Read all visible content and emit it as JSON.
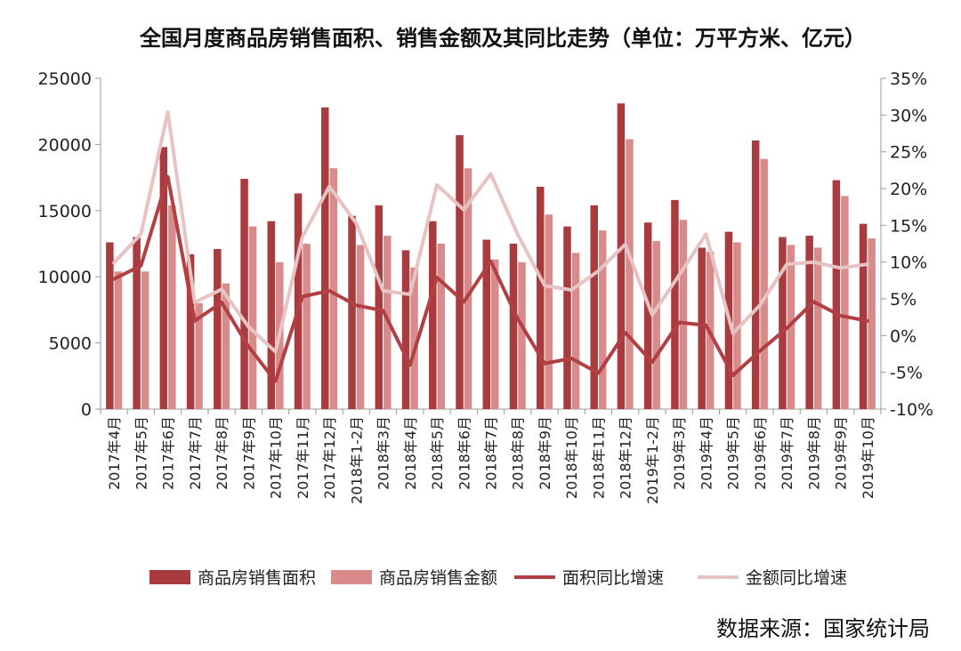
{
  "chart_data": {
    "type": "bar",
    "title": "全国月度商品房销售面积、销售金额及其同比走势（单位：万平方米、亿元）",
    "categories": [
      "2017年4月",
      "2017年5月",
      "2017年6月",
      "2017年7月",
      "2017年8月",
      "2017年9月",
      "2017年10月",
      "2017年11月",
      "2017年12月",
      "2018年1-2月",
      "2018年3月",
      "2018年4月",
      "2018年5月",
      "2018年6月",
      "2018年7月",
      "2018年8月",
      "2018年9月",
      "2018年10月",
      "2018年11月",
      "2018年12月",
      "2019年1-2月",
      "2019年3月",
      "2019年4月",
      "2019年5月",
      "2019年6月",
      "2019年7月",
      "2019年8月",
      "2019年9月",
      "2019年10月"
    ],
    "y_left": {
      "ylim": [
        0,
        25000
      ],
      "ticks": [
        "0",
        "5000",
        "10000",
        "15000",
        "20000",
        "25000"
      ],
      "tick_values": [
        0,
        5000,
        10000,
        15000,
        20000,
        25000
      ]
    },
    "y_right": {
      "ylim": [
        -10,
        35
      ],
      "ticks": [
        "-10%",
        "-5%",
        "0%",
        "5%",
        "10%",
        "15%",
        "20%",
        "25%",
        "30%",
        "35%"
      ],
      "tick_values": [
        -10,
        -5,
        0,
        5,
        10,
        15,
        20,
        25,
        30,
        35
      ]
    },
    "series": [
      {
        "name": "商品房销售面积",
        "type": "bar",
        "axis": "left",
        "color": "#a93a3e",
        "values": [
          12600,
          13000,
          19800,
          11700,
          12100,
          17400,
          14200,
          16300,
          22800,
          14600,
          15400,
          12000,
          14200,
          20700,
          12800,
          12500,
          16800,
          13800,
          15400,
          23100,
          14100,
          15800,
          12200,
          13400,
          20300,
          13000,
          13100,
          17300,
          14000
        ]
      },
      {
        "name": "商品房销售金额",
        "type": "bar",
        "axis": "left",
        "color": "#d98a8a",
        "values": [
          10400,
          10400,
          15400,
          8000,
          9500,
          13800,
          11100,
          12500,
          18200,
          12400,
          13100,
          10700,
          12500,
          18200,
          11300,
          11100,
          14700,
          11800,
          13500,
          20400,
          12700,
          14300,
          11900,
          12600,
          18900,
          12400,
          12200,
          16100,
          12900
        ]
      },
      {
        "name": "面积同比增速",
        "type": "line",
        "axis": "right",
        "color": "#b23f43",
        "values": [
          7.7,
          9.5,
          21.6,
          2.0,
          4.5,
          -1.5,
          -6.2,
          5.3,
          6.1,
          4.1,
          3.4,
          -4.0,
          7.9,
          4.6,
          10.1,
          2.3,
          -3.8,
          -3.1,
          -5.1,
          0.4,
          -3.6,
          1.8,
          1.4,
          -5.4,
          -2.1,
          1.0,
          4.6,
          2.7,
          2.0
        ]
      },
      {
        "name": "金额同比增速",
        "type": "line",
        "axis": "right",
        "color": "#e7c3c3",
        "values": [
          9.9,
          13.8,
          30.4,
          4.5,
          6.3,
          1.2,
          -2.2,
          13.4,
          20.3,
          15.3,
          6.1,
          5.6,
          20.5,
          17.1,
          22.0,
          13.8,
          6.8,
          6.2,
          8.8,
          12.4,
          2.8,
          8.2,
          13.8,
          0.3,
          4.1,
          9.7,
          10.0,
          9.2,
          9.7
        ]
      }
    ],
    "legend": "bottom",
    "grid": false
  },
  "source_label": "数据来源：国家统计局"
}
